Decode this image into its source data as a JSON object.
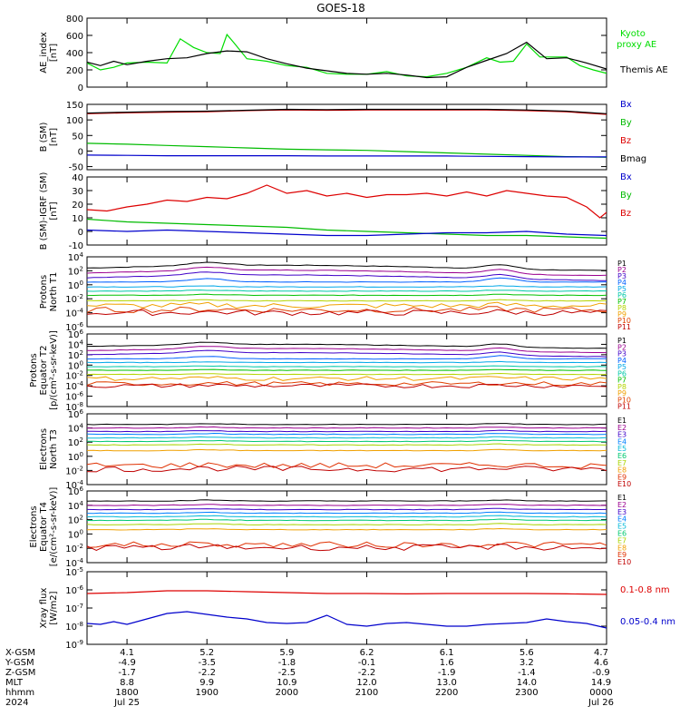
{
  "chart_data": {
    "type": "line",
    "title": "GOES-18",
    "x_axis": {
      "unit": "hhmm UT",
      "range": [
        "2024-07-25 17:30",
        "2024-07-26 00:00"
      ],
      "ticks": [
        {
          "t": 1800,
          "hhmm": "1800",
          "xgsm": "4.1",
          "ygsm": "-4.9",
          "zgsm": "-1.7",
          "mlt": "8.8",
          "date": "Jul 25"
        },
        {
          "t": 1900,
          "hhmm": "1900",
          "xgsm": "5.2",
          "ygsm": "-3.5",
          "zgsm": "-2.2",
          "mlt": "9.9",
          "date": ""
        },
        {
          "t": 2000,
          "hhmm": "2000",
          "xgsm": "5.9",
          "ygsm": "-1.8",
          "zgsm": "-2.5",
          "mlt": "10.9",
          "date": ""
        },
        {
          "t": 2100,
          "hhmm": "2100",
          "xgsm": "6.2",
          "ygsm": "-0.1",
          "zgsm": "-2.2",
          "mlt": "12.0",
          "date": ""
        },
        {
          "t": 2200,
          "hhmm": "2200",
          "xgsm": "6.1",
          "ygsm": "1.6",
          "zgsm": "-1.9",
          "mlt": "13.0",
          "date": ""
        },
        {
          "t": 2300,
          "hhmm": "2300",
          "xgsm": "5.6",
          "ygsm": "3.2",
          "zgsm": "-1.4",
          "mlt": "14.0",
          "date": ""
        },
        {
          "t": 2400,
          "hhmm": "0000",
          "xgsm": "4.7",
          "ygsm": "4.6",
          "zgsm": "-0.9",
          "mlt": "14.9",
          "date": "Jul 26"
        }
      ],
      "row_labels": [
        "X-GSM",
        "Y-GSM",
        "Z-GSM",
        "MLT",
        "hhmm",
        "2024"
      ]
    },
    "panels": [
      {
        "id": "ae",
        "ylabel": [
          "AE_index",
          "[nT]"
        ],
        "scale": "linear",
        "ylim": [
          0,
          800
        ],
        "yticks": [
          0,
          200,
          400,
          600,
          800
        ],
        "legend": [
          {
            "text": "Kyoto\nproxy AE",
            "color": "#00dd00"
          },
          {
            "text": "Themis AE",
            "color": "#000000"
          }
        ],
        "series": [
          {
            "name": "Kyoto proxy AE",
            "color": "#00dd00",
            "x": [
              1730,
              1740,
              1750,
              1800,
              1815,
              1830,
              1840,
              1850,
              1900,
              1910,
              1915,
              1920,
              1930,
              1945,
              2000,
              2015,
              2030,
              2045,
              2100,
              2115,
              2130,
              2145,
              2200,
              2215,
              2230,
              2240,
              2250,
              2300,
              2310,
              2320,
              2330,
              2340,
              2350,
              2400
            ],
            "y": [
              280,
              200,
              230,
              280,
              290,
              280,
              560,
              460,
              400,
              390,
              610,
              520,
              330,
              300,
              250,
              230,
              160,
              150,
              150,
              180,
              130,
              120,
              160,
              230,
              340,
              290,
              300,
              500,
              350,
              350,
              350,
              250,
              200,
              160
            ]
          },
          {
            "name": "Themis AE",
            "color": "#000000",
            "x": [
              1730,
              1740,
              1750,
              1800,
              1815,
              1830,
              1845,
              1900,
              1915,
              1930,
              1945,
              2000,
              2015,
              2030,
              2045,
              2100,
              2115,
              2130,
              2145,
              2200,
              2215,
              2230,
              2245,
              2300,
              2315,
              2330,
              2345,
              2400
            ],
            "y": [
              290,
              250,
              300,
              260,
              300,
              330,
              340,
              390,
              420,
              410,
              330,
              270,
              220,
              190,
              160,
              150,
              160,
              140,
              110,
              120,
              230,
              310,
              390,
              520,
              330,
              340,
              280,
              210
            ]
          }
        ]
      },
      {
        "id": "bsm",
        "ylabel": [
          "B (SM)",
          "[nT]"
        ],
        "scale": "linear",
        "ylim": [
          -60,
          150
        ],
        "yticks": [
          -50,
          0,
          50,
          100,
          150
        ],
        "legend": [
          {
            "text": "Bx",
            "color": "#0000cc"
          },
          {
            "text": "By",
            "color": "#00bb00"
          },
          {
            "text": "Bz",
            "color": "#dd0000"
          },
          {
            "text": "Bmag",
            "color": "#000000"
          }
        ],
        "series": [
          {
            "name": "Bz",
            "color": "#dd0000",
            "x": [
              1730,
              1800,
              1830,
              1900,
              1930,
              2000,
              2030,
              2100,
              2130,
              2200,
              2230,
              2300,
              2330,
              2400
            ],
            "y": [
              120,
              123,
              125,
              126,
              130,
              132,
              131,
              132,
              132,
              132,
              132,
              130,
              126,
              118
            ]
          },
          {
            "name": "Bmag",
            "color": "#000000",
            "x": [
              1730,
              1800,
              1830,
              1900,
              1930,
              2000,
              2030,
              2100,
              2130,
              2200,
              2230,
              2300,
              2330,
              2400
            ],
            "y": [
              122,
              125,
              127,
              128,
              131,
              134,
              133,
              134,
              134,
              134,
              134,
              132,
              128,
              120
            ]
          },
          {
            "name": "By",
            "color": "#00bb00",
            "x": [
              1730,
              1800,
              1830,
              1900,
              1930,
              2000,
              2030,
              2100,
              2130,
              2200,
              2230,
              2300,
              2330,
              2400
            ],
            "y": [
              25,
              22,
              18,
              14,
              10,
              6,
              4,
              2,
              -2,
              -6,
              -10,
              -14,
              -18,
              -20
            ]
          },
          {
            "name": "Bx",
            "color": "#0000cc",
            "x": [
              1730,
              1800,
              1830,
              1900,
              1930,
              2000,
              2030,
              2100,
              2130,
              2200,
              2230,
              2300,
              2330,
              2400
            ],
            "y": [
              -13,
              -14,
              -15,
              -15,
              -15,
              -15,
              -16,
              -16,
              -16,
              -16,
              -17,
              -18,
              -19,
              -19
            ]
          }
        ]
      },
      {
        "id": "bdiff",
        "ylabel": [
          "B (SM)-IGRF (SM)",
          "[nT]"
        ],
        "scale": "linear",
        "ylim": [
          -10,
          40
        ],
        "yticks": [
          -10,
          0,
          10,
          20,
          30,
          40
        ],
        "legend": [
          {
            "text": "Bx",
            "color": "#0000cc"
          },
          {
            "text": "By",
            "color": "#00bb00"
          },
          {
            "text": "Bz",
            "color": "#dd0000"
          }
        ],
        "series": [
          {
            "name": "Bz",
            "color": "#dd0000",
            "x": [
              1730,
              1745,
              1800,
              1815,
              1830,
              1845,
              1900,
              1915,
              1930,
              1945,
              2000,
              2015,
              2030,
              2045,
              2100,
              2115,
              2130,
              2145,
              2200,
              2215,
              2230,
              2245,
              2300,
              2315,
              2330,
              2345,
              2355,
              2400
            ],
            "y": [
              16,
              15,
              18,
              20,
              23,
              22,
              25,
              24,
              28,
              34,
              28,
              30,
              26,
              28,
              25,
              27,
              27,
              28,
              26,
              29,
              26,
              30,
              28,
              26,
              25,
              18,
              10,
              14
            ]
          },
          {
            "name": "By",
            "color": "#00bb00",
            "x": [
              1730,
              1800,
              1830,
              1900,
              1930,
              2000,
              2030,
              2100,
              2130,
              2200,
              2230,
              2300,
              2330,
              2400
            ],
            "y": [
              9,
              7,
              6,
              5,
              4,
              3,
              1,
              0,
              -1,
              -2,
              -3,
              -3,
              -4,
              -5
            ]
          },
          {
            "name": "Bx",
            "color": "#0000cc",
            "x": [
              1730,
              1800,
              1830,
              1900,
              1930,
              2000,
              2030,
              2100,
              2130,
              2200,
              2230,
              2300,
              2330,
              2400
            ],
            "y": [
              1,
              0,
              1,
              0,
              -1,
              -2,
              -3,
              -3,
              -2,
              -1,
              -1,
              0,
              -2,
              -3
            ]
          }
        ]
      },
      {
        "id": "p_t1",
        "ylabel": [
          "Protons",
          "North T1"
        ],
        "scale": "log",
        "ylim": [
          -6,
          4
        ],
        "ylim_unit": "log10",
        "yticks": [
          -6,
          -4,
          -2,
          0,
          2,
          4
        ],
        "channels": [
          "P1",
          "P2",
          "P3",
          "P4",
          "P5",
          "P6",
          "P7",
          "P8",
          "P9",
          "P10",
          "P11"
        ],
        "channel_log10_levels": [
          2.4,
          1.7,
          1.0,
          0.4,
          -0.3,
          -0.9,
          -1.5,
          -2.3,
          -3.0,
          -3.6,
          -4.0
        ]
      },
      {
        "id": "p_t2",
        "ylabel": [
          "Protons",
          "Equator T2",
          "[p/(cm²-s-sr-keV)]"
        ],
        "scale": "log",
        "ylim": [
          -8,
          6
        ],
        "ylim_unit": "log10",
        "yticks": [
          -8,
          -6,
          -4,
          -2,
          0,
          2,
          4,
          6
        ],
        "channels": [
          "P1",
          "P2",
          "P3",
          "P4",
          "P5",
          "P6",
          "P7",
          "P8",
          "P9",
          "P10",
          "P11"
        ],
        "channel_log10_levels": [
          3.6,
          2.8,
          2.0,
          1.2,
          0.5,
          -0.3,
          -1.0,
          -1.8,
          -2.6,
          -3.6,
          -4.0
        ]
      },
      {
        "id": "e_t3",
        "ylabel": [
          "Electrons",
          "North T3"
        ],
        "scale": "log",
        "ylim": [
          -4,
          6
        ],
        "ylim_unit": "log10",
        "yticks": [
          -4,
          -2,
          0,
          2,
          4,
          6
        ],
        "channels": [
          "E1",
          "E2",
          "E3",
          "E4",
          "E5",
          "E6",
          "E7",
          "E8",
          "E9",
          "E10"
        ],
        "channel_log10_levels": [
          4.5,
          4.0,
          3.5,
          3.1,
          2.6,
          2.1,
          1.6,
          0.8,
          -1.3,
          -1.8
        ]
      },
      {
        "id": "e_t4",
        "ylabel": [
          "Electrons",
          "Equator T4",
          "[e/(cm²-s-sr-keV)]"
        ],
        "scale": "log",
        "ylim": [
          -4,
          6
        ],
        "ylim_unit": "log10",
        "yticks": [
          -4,
          -2,
          0,
          2,
          4,
          6
        ],
        "channels": [
          "E1",
          "E2",
          "E3",
          "E4",
          "E5",
          "E6",
          "E7",
          "E8",
          "E9",
          "E10"
        ],
        "channel_log10_levels": [
          4.6,
          4.0,
          3.4,
          2.9,
          2.4,
          1.9,
          1.3,
          0.6,
          -1.5,
          -1.9
        ]
      },
      {
        "id": "xray",
        "ylabel": [
          "Xray flux",
          "[W/m2]"
        ],
        "scale": "log",
        "ylim": [
          -9,
          -5
        ],
        "ylim_unit": "log10",
        "yticks": [
          -9,
          -8,
          -7,
          -6,
          -5
        ],
        "legend": [
          {
            "text": "0.1-0.8 nm",
            "color": "#dd0000"
          },
          {
            "text": "0.05-0.4 nm",
            "color": "#0000cc"
          }
        ],
        "series": [
          {
            "name": "0.1-0.8 nm",
            "color": "#dd0000",
            "log10": true,
            "x": [
              1730,
              1800,
              1830,
              1900,
              1930,
              2000,
              2030,
              2100,
              2130,
              2200,
              2230,
              2300,
              2330,
              2400
            ],
            "y": [
              -6.2,
              -6.15,
              -6.05,
              -6.05,
              -6.1,
              -6.15,
              -6.2,
              -6.2,
              -6.22,
              -6.2,
              -6.2,
              -6.2,
              -6.22,
              -6.25
            ]
          },
          {
            "name": "0.05-0.4 nm",
            "color": "#0000cc",
            "log10": true,
            "x": [
              1730,
              1740,
              1750,
              1800,
              1815,
              1830,
              1845,
              1900,
              1915,
              1930,
              1945,
              2000,
              2015,
              2030,
              2045,
              2100,
              2115,
              2130,
              2145,
              2200,
              2215,
              2230,
              2245,
              2300,
              2315,
              2330,
              2345,
              2400
            ],
            "y": [
              -7.85,
              -7.9,
              -7.75,
              -7.9,
              -7.6,
              -7.3,
              -7.2,
              -7.35,
              -7.5,
              -7.6,
              -7.8,
              -7.85,
              -7.8,
              -7.4,
              -7.9,
              -8.0,
              -7.85,
              -7.8,
              -7.9,
              -8.0,
              -8.0,
              -7.9,
              -7.85,
              -7.8,
              -7.6,
              -7.75,
              -7.85,
              -8.1
            ]
          }
        ]
      }
    ]
  }
}
